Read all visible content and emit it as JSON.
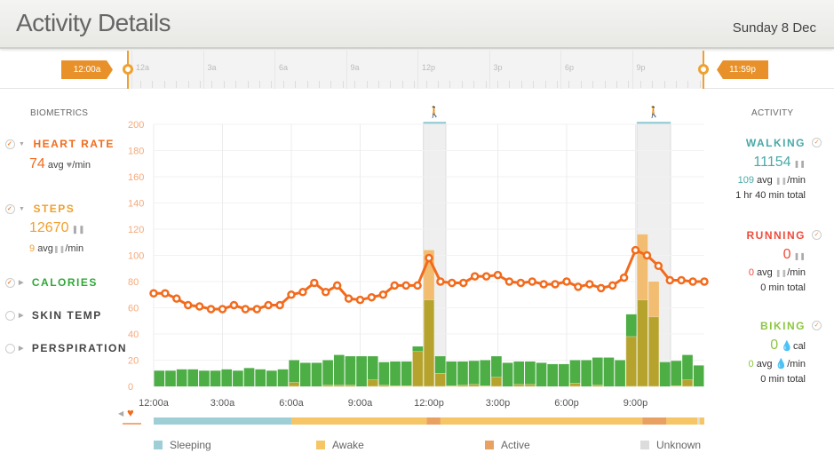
{
  "header": {
    "title": "Activity Details",
    "date": "Sunday 8 Dec"
  },
  "range": {
    "start_label": "12:00a",
    "end_label": "11:59p",
    "ticks": [
      "12a",
      "3a",
      "6a",
      "9a",
      "12p",
      "3p",
      "6p",
      "9p"
    ]
  },
  "biometrics": {
    "heading": "BIOMETRICS",
    "heart_rate": {
      "label": "HEART RATE",
      "value": "74",
      "unit": "avg",
      "per": "/min",
      "checked": true
    },
    "steps": {
      "label": "STEPS",
      "value": "12670",
      "avg": "9",
      "avg_unit": "avg",
      "per": "/min",
      "checked": true
    },
    "calories": {
      "label": "CALORIES",
      "checked": true
    },
    "skin_temp": {
      "label": "SKIN TEMP",
      "checked": false
    },
    "perspiration": {
      "label": "PERSPIRATION",
      "checked": false
    }
  },
  "activity": {
    "heading": "ACTIVITY",
    "walking": {
      "label": "WALKING",
      "value": "11154",
      "avg": "109",
      "avg_unit": "avg",
      "per": "/min",
      "total": "1 hr 40 min total"
    },
    "running": {
      "label": "RUNNING",
      "value": "0",
      "avg": "0",
      "avg_unit": "avg",
      "per": "/min",
      "total": "0 min total"
    },
    "biking": {
      "label": "BIKING",
      "value": "0",
      "value_unit": "cal",
      "avg": "0",
      "avg_unit": "avg",
      "per": "/min",
      "total": "0 min total"
    }
  },
  "colors": {
    "heart": "#f26b1d",
    "steps": "#f0a030",
    "calories": "#2ea836",
    "walking": "#4aa8a8",
    "running": "#f04a3a",
    "biking": "#8cc63f",
    "bar_green": "#4cae45",
    "bar_olive": "#b5a32e",
    "bar_tan": "#f2bd70"
  },
  "chart_data": {
    "type": "bar+line",
    "ylim": [
      0,
      200
    ],
    "yticks": [
      "0",
      "20",
      "40",
      "60",
      "80",
      "100",
      "120",
      "140",
      "160",
      "180",
      "200"
    ],
    "xticks": [
      "12:00a",
      "3:00a",
      "6:00a",
      "9:00a",
      "12:00p",
      "3:00p",
      "6:00p",
      "9:00p"
    ],
    "heart_rate": [
      71,
      71,
      67,
      62,
      61,
      59,
      59,
      62,
      59,
      59,
      62,
      62,
      70,
      72,
      79,
      72,
      77,
      67,
      66,
      68,
      70,
      77,
      77,
      77,
      98,
      80,
      79,
      79,
      84,
      84,
      85,
      80,
      79,
      80,
      78,
      78,
      80,
      76,
      78,
      75,
      77,
      83,
      104,
      100,
      92,
      81,
      81,
      80,
      80
    ],
    "bar_total": [
      12,
      12,
      13,
      13,
      12,
      12,
      13,
      12,
      14,
      13,
      12,
      13,
      20,
      18,
      18,
      20,
      24,
      23,
      23,
      23,
      18.5,
      19,
      19,
      30.5,
      104,
      23,
      19,
      19,
      19.5,
      20,
      23,
      18,
      19,
      19,
      18,
      17,
      17,
      20,
      20,
      22,
      22,
      20,
      55,
      116,
      80,
      18.5,
      19.5,
      24,
      16
    ],
    "bar_steps": [
      0,
      0,
      0,
      0,
      0,
      0,
      0,
      0,
      0,
      0,
      0,
      0,
      3,
      0,
      0,
      1,
      1,
      1,
      0,
      5,
      1,
      0.5,
      0.5,
      26.6,
      66,
      10,
      0.5,
      1,
      1.5,
      0.5,
      7,
      0,
      1.5,
      1.5,
      0,
      0,
      0,
      2.5,
      0,
      1,
      0,
      0,
      38,
      66,
      53,
      0,
      0.5,
      5,
      0
    ],
    "bar_top_walking": [
      24,
      43,
      44
    ],
    "walking_periods": [
      [
        24,
        25
      ],
      [
        43,
        45
      ]
    ]
  },
  "timeline": {
    "segments": [
      {
        "state": "Sleeping",
        "from": 0,
        "to": 6.0
      },
      {
        "state": "Awake",
        "from": 6.0,
        "to": 11.9
      },
      {
        "state": "Active",
        "from": 11.9,
        "to": 12.5
      },
      {
        "state": "Awake",
        "from": 12.5,
        "to": 21.3
      },
      {
        "state": "Active",
        "from": 21.3,
        "to": 22.35
      },
      {
        "state": "Awake",
        "from": 22.35,
        "to": 23.7
      },
      {
        "state": "Unknown",
        "from": 23.7,
        "to": 23.8
      },
      {
        "state": "Awake",
        "from": 23.8,
        "to": 24
      }
    ],
    "legend": [
      {
        "label": "Sleeping",
        "color": "#9fcfd6"
      },
      {
        "label": "Awake",
        "color": "#f6c566"
      },
      {
        "label": "Active",
        "color": "#e9a162"
      },
      {
        "label": "Unknown",
        "color": "#dcdcdc"
      }
    ]
  }
}
